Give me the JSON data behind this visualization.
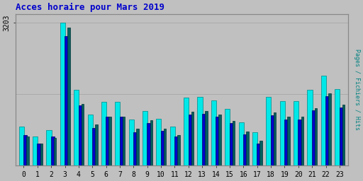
{
  "title": "Acces horaire pour Mars 2019",
  "title_color": "#0000cc",
  "ylabel_right": "Pages / Fichiers / Hits",
  "ytick_label": "3203",
  "background_color": "#c0c0c0",
  "plot_bg_color": "#c0c0c0",
  "hours": [
    0,
    1,
    2,
    3,
    4,
    5,
    6,
    7,
    8,
    9,
    10,
    11,
    12,
    13,
    14,
    15,
    16,
    17,
    18,
    19,
    20,
    21,
    22,
    23
  ],
  "hits": [
    870,
    650,
    800,
    3203,
    1700,
    1150,
    1430,
    1430,
    1040,
    1230,
    1050,
    880,
    1520,
    1540,
    1460,
    1270,
    970,
    750,
    1540,
    1440,
    1440,
    1700,
    2020,
    1720
  ],
  "fichiers": [
    680,
    490,
    650,
    2900,
    1350,
    850,
    1100,
    1100,
    750,
    960,
    780,
    650,
    1150,
    1160,
    1090,
    950,
    700,
    490,
    1130,
    1040,
    1040,
    1240,
    1560,
    1310
  ],
  "pages": [
    660,
    490,
    620,
    3100,
    1380,
    920,
    1100,
    1100,
    830,
    1020,
    820,
    680,
    1210,
    1220,
    1150,
    1000,
    760,
    560,
    1200,
    1100,
    1100,
    1290,
    1620,
    1370
  ],
  "color_pages": "#006060",
  "color_fichiers": "#0000cc",
  "color_hits": "#00e8e8",
  "font_family": "monospace",
  "ymax": 3400,
  "grid_lines": [
    1600,
    3203
  ]
}
